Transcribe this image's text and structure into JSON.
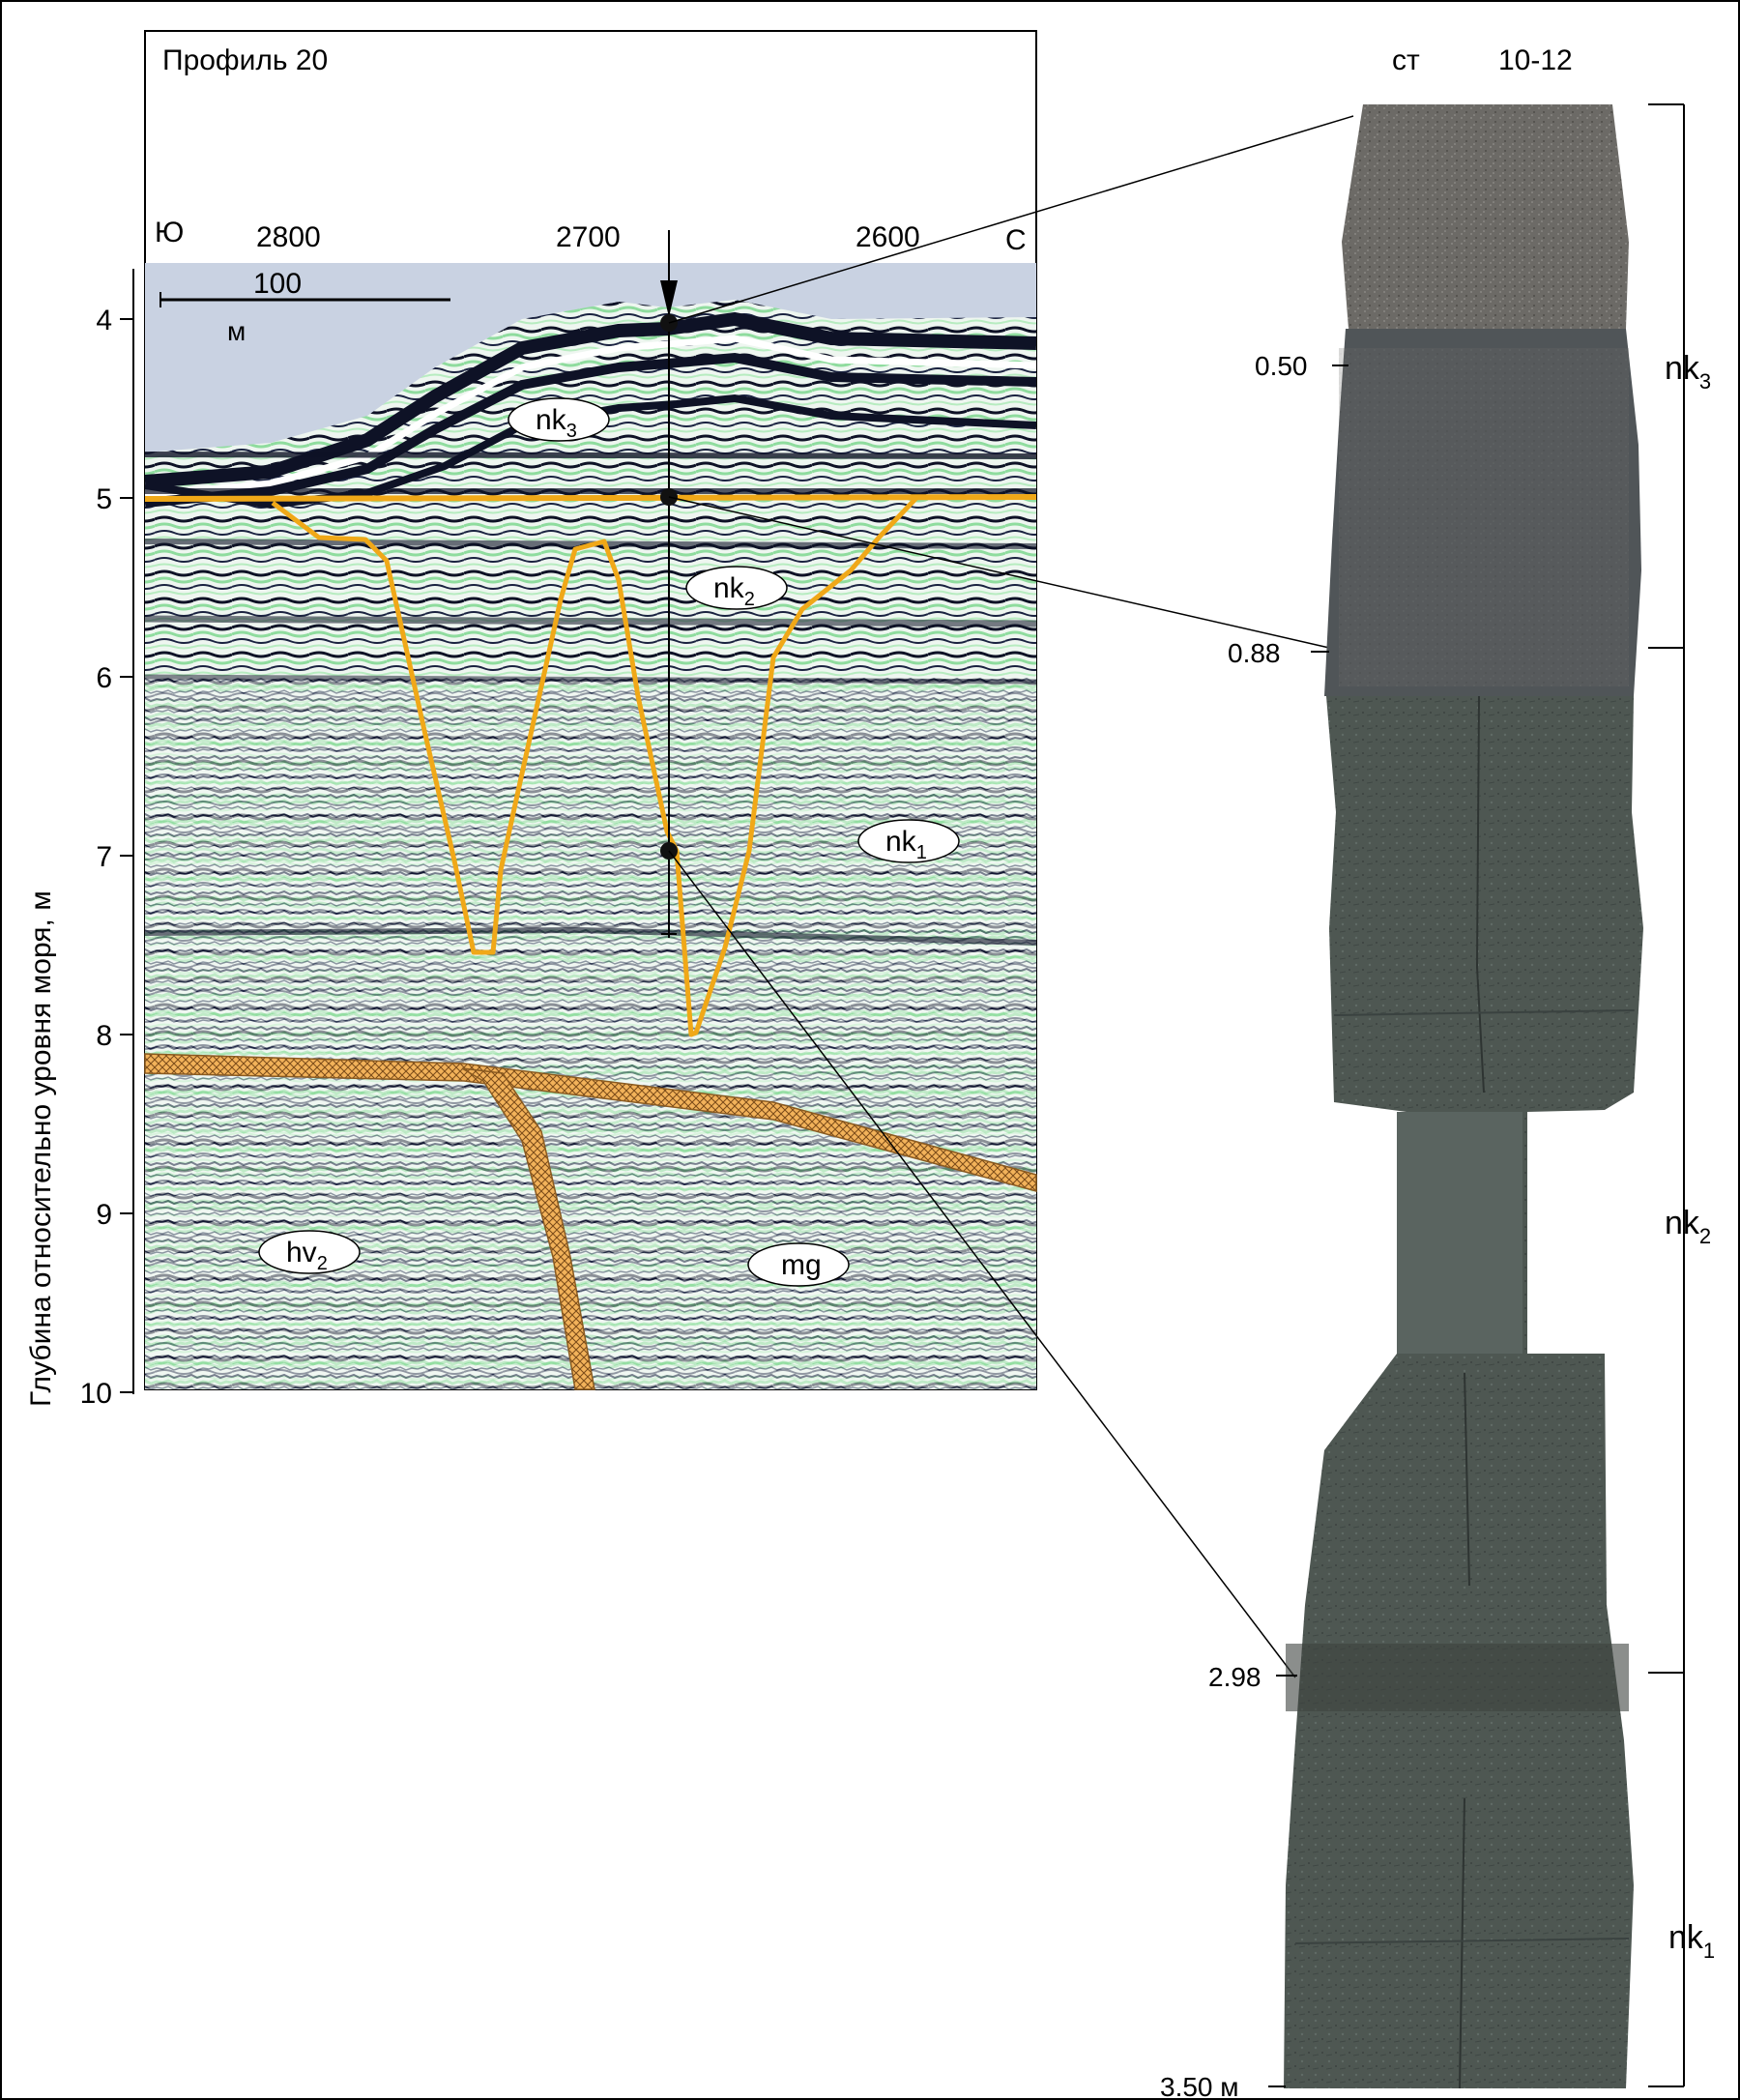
{
  "profile": {
    "title": "Профиль 20",
    "dir_south": "Ю",
    "dir_north": "С",
    "x_ticks": [
      "2800",
      "2700",
      "2600"
    ],
    "scale_value": "100",
    "scale_unit": "м",
    "y_axis_label": "Глубина относительно уровня моря, м",
    "y_ticks": [
      "4",
      "5",
      "6",
      "7",
      "8",
      "9",
      "10"
    ]
  },
  "units": [
    {
      "base": "nk",
      "sub": "3"
    },
    {
      "base": "nk",
      "sub": "2"
    },
    {
      "base": "nk",
      "sub": "1"
    },
    {
      "base": "hv",
      "sub": "2"
    },
    {
      "base": "mg",
      "sub": ""
    }
  ],
  "core": {
    "station_prefix": "ст",
    "station_id": "10-12",
    "depth_marks": [
      "0.50",
      "0.88",
      "2.98",
      "3.50 м"
    ],
    "layers": [
      {
        "base": "nk",
        "sub": "3"
      },
      {
        "base": "nk",
        "sub": "2"
      },
      {
        "base": "nk",
        "sub": "1"
      }
    ]
  },
  "colors": {
    "sky": "#c9d2e2",
    "seismic_green": "#a9e6b4",
    "seismic_dark": "#0e1226",
    "boundary": "#f0a818",
    "core_top": "#6f6d69",
    "core_mid": "#4b5450",
    "core_bottom": "#56605b"
  }
}
